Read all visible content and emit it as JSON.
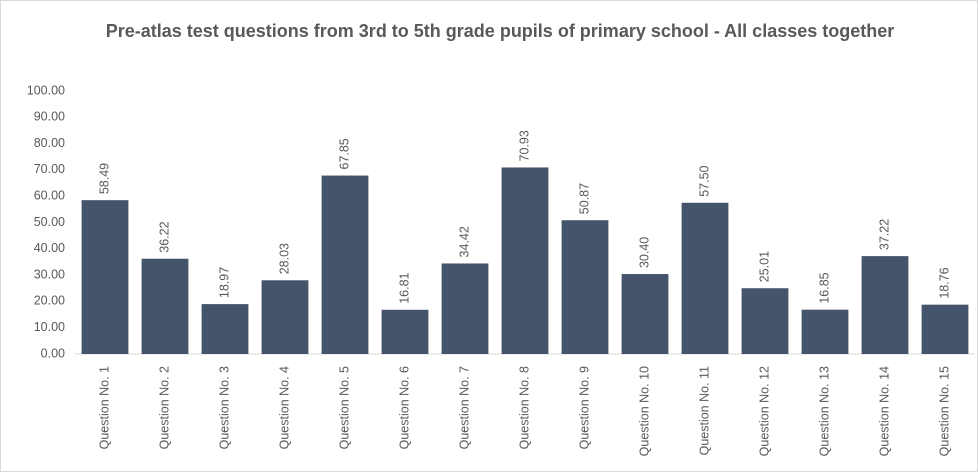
{
  "chart_data": {
    "type": "bar",
    "title": "Pre-atlas test questions from 3rd to 5th grade pupils of primary school - All classes together",
    "categories": [
      "Question No. 1",
      "Question No. 2",
      "Question No. 3",
      "Question No. 4",
      "Question No. 5",
      "Question No. 6",
      "Question No. 7",
      "Question No. 8",
      "Question No. 9",
      "Question No. 10",
      "Question No. 11",
      "Question No. 12",
      "Question No. 13",
      "Question No. 14",
      "Question No. 15"
    ],
    "values": [
      58.49,
      36.22,
      18.97,
      28.03,
      67.85,
      16.81,
      34.42,
      70.93,
      50.87,
      30.4,
      57.5,
      25.01,
      16.85,
      37.22,
      18.76
    ],
    "value_labels": [
      "58.49",
      "36.22",
      "18.97",
      "28.03",
      "67.85",
      "16.81",
      "34.42",
      "70.93",
      "50.87",
      "30.40",
      "57.50",
      "25.01",
      "16.85",
      "37.22",
      "18.76"
    ],
    "color": "#44546a",
    "ylim": [
      0,
      100
    ],
    "yticks": [
      {
        "value": 0,
        "label": "0.00"
      },
      {
        "value": 10,
        "label": "10.00"
      },
      {
        "value": 20,
        "label": "20.00"
      },
      {
        "value": 30,
        "label": "30.00"
      },
      {
        "value": 40,
        "label": "40.00"
      },
      {
        "value": 50,
        "label": "50.00"
      },
      {
        "value": 60,
        "label": "60.00"
      },
      {
        "value": 70,
        "label": "70.00"
      },
      {
        "value": 80,
        "label": "80.00"
      },
      {
        "value": 90,
        "label": "90.00"
      },
      {
        "value": 100,
        "label": "100.00"
      }
    ],
    "grid": false
  }
}
